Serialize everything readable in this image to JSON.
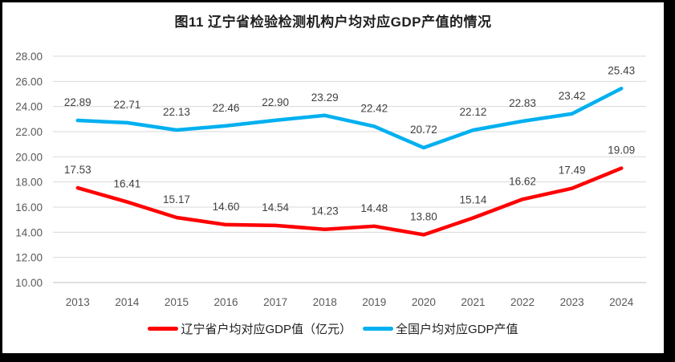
{
  "title": "图11 辽宁省检验检测机构户均对应GDP产值的情况",
  "colors": {
    "liaoning_series": "#ff0000",
    "national_series": "#00b0f0",
    "gridline": "#d9d9d9",
    "axis_line": "#bfbfbf",
    "tick_text": "#595959",
    "data_label_text": "#404040",
    "title_text": "#1f1f1f",
    "frame_border": "#000000",
    "background": "#ffffff"
  },
  "chart_data": {
    "type": "line",
    "title": "图11 辽宁省检验检测机构户均对应GDP产值的情况",
    "categories": [
      "2013",
      "2014",
      "2015",
      "2016",
      "2017",
      "2018",
      "2019",
      "2020",
      "2021",
      "2022",
      "2023",
      "2024"
    ],
    "series": [
      {
        "name": "辽宁省户均对应GDP值（亿元）",
        "color": "#ff0000",
        "values": [
          17.53,
          16.41,
          15.17,
          14.6,
          14.54,
          14.23,
          14.48,
          13.8,
          15.14,
          16.62,
          17.49,
          19.09
        ],
        "value_labels": [
          "17.53",
          "16.41",
          "15.17",
          "14.60",
          "14.54",
          "14.23",
          "14.48",
          "13.80",
          "15.14",
          "16.62",
          "17.49",
          "19.09"
        ]
      },
      {
        "name": "全国户均对应GDP产值",
        "color": "#00b0f0",
        "values": [
          22.89,
          22.71,
          22.13,
          22.46,
          22.9,
          23.29,
          22.42,
          20.72,
          22.12,
          22.83,
          23.42,
          25.43
        ],
        "value_labels": [
          "22.89",
          "22.71",
          "22.13",
          "22.46",
          "22.90",
          "23.29",
          "22.42",
          "20.72",
          "22.12",
          "22.83",
          "23.42",
          "25.43"
        ]
      }
    ],
    "xlabel": "",
    "ylabel": "",
    "ylim": [
      10,
      28
    ],
    "ytick_step": 2,
    "ytick_labels": [
      "10.00",
      "12.00",
      "14.00",
      "16.00",
      "18.00",
      "20.00",
      "22.00",
      "24.00",
      "26.00",
      "28.00"
    ],
    "grid": true,
    "data_labels_shown": true,
    "legend_position": "bottom"
  },
  "legend": {
    "items": [
      {
        "label": "辽宁省户均对应GDP值（亿元）"
      },
      {
        "label": "全国户均对应GDP产值"
      }
    ]
  }
}
